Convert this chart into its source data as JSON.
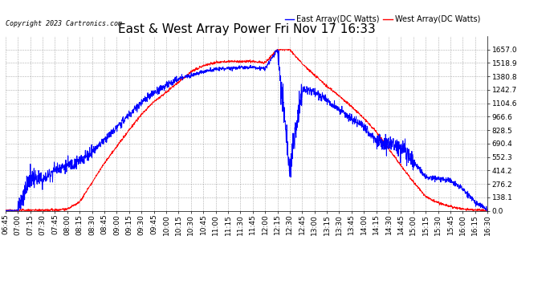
{
  "title": "East & West Array Power Fri Nov 17 16:33",
  "copyright": "Copyright 2023 Cartronics.com",
  "legend_east": "East Array(DC Watts)",
  "legend_west": "West Array(DC Watts)",
  "east_color": "blue",
  "west_color": "red",
  "ylim": [
    0.0,
    1795.0
  ],
  "yticks": [
    0.0,
    138.1,
    276.2,
    414.2,
    552.3,
    690.4,
    828.5,
    966.6,
    1104.6,
    1242.7,
    1380.8,
    1518.9,
    1657.0
  ],
  "background_color": "#ffffff",
  "grid_color": "#999999",
  "title_fontsize": 11,
  "tick_fontsize": 6.5,
  "x_tick_labels": [
    "06:45",
    "07:00",
    "07:15",
    "07:30",
    "07:45",
    "08:00",
    "08:15",
    "08:30",
    "08:45",
    "09:00",
    "09:15",
    "09:30",
    "09:45",
    "10:00",
    "10:15",
    "10:30",
    "10:45",
    "11:00",
    "11:15",
    "11:30",
    "11:45",
    "12:00",
    "12:15",
    "12:30",
    "12:45",
    "13:00",
    "13:15",
    "13:30",
    "13:45",
    "14:00",
    "14:15",
    "14:30",
    "14:45",
    "15:00",
    "15:15",
    "15:30",
    "15:45",
    "16:00",
    "16:15",
    "16:30"
  ],
  "east_profile": {
    "06:45": 0,
    "07:00": 5,
    "07:15": 350,
    "07:30": 310,
    "07:45": 430,
    "08:00": 460,
    "08:15": 510,
    "08:30": 610,
    "08:45": 730,
    "09:00": 850,
    "09:15": 990,
    "09:30": 1110,
    "09:45": 1210,
    "10:00": 1290,
    "10:15": 1355,
    "10:30": 1395,
    "10:45": 1430,
    "11:00": 1455,
    "11:15": 1465,
    "11:30": 1475,
    "11:45": 1475,
    "12:00": 1460,
    "12:15": 1657,
    "12:30": 430,
    "12:45": 1250,
    "13:00": 1220,
    "13:15": 1130,
    "13:30": 1040,
    "13:45": 940,
    "14:00": 860,
    "14:15": 720,
    "14:30": 690,
    "14:45": 660,
    "15:00": 510,
    "15:15": 350,
    "15:30": 330,
    "15:45": 310,
    "16:00": 220,
    "16:15": 90,
    "16:30": 10
  },
  "west_profile": {
    "06:45": 2,
    "07:00": 3,
    "07:15": 4,
    "07:30": 5,
    "07:45": 8,
    "08:00": 15,
    "08:15": 90,
    "08:30": 290,
    "08:45": 490,
    "09:00": 660,
    "09:15": 830,
    "09:30": 990,
    "09:45": 1120,
    "10:00": 1220,
    "10:15": 1320,
    "10:30": 1430,
    "10:45": 1490,
    "11:00": 1525,
    "11:15": 1535,
    "11:30": 1535,
    "11:45": 1535,
    "12:00": 1520,
    "12:15": 1657,
    "12:30": 1657,
    "12:45": 1510,
    "13:00": 1395,
    "13:15": 1280,
    "13:30": 1180,
    "13:45": 1070,
    "14:00": 950,
    "14:15": 810,
    "14:30": 640,
    "14:45": 460,
    "15:00": 295,
    "15:15": 148,
    "15:30": 80,
    "15:45": 42,
    "16:00": 15,
    "16:15": 6,
    "16:30": 3
  }
}
